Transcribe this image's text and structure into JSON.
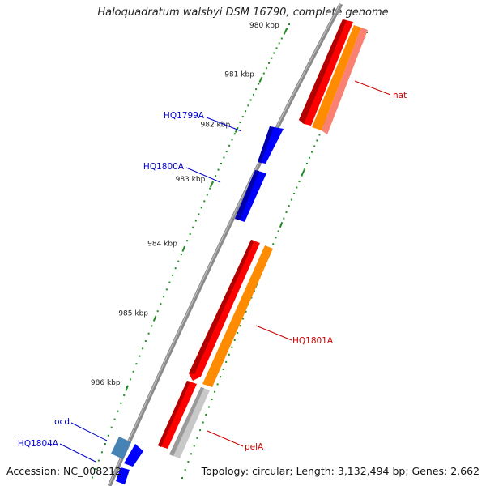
{
  "title": "Haloquadratum walsbyi DSM 16790, complete genome",
  "footer": {
    "accession": "Accession: NC_008212",
    "topology": "Topology: circular; Length: 3,132,494 bp; Genes: 2,662"
  },
  "ticks": [
    "980 kbp",
    "981 kbp",
    "982 kbp",
    "983 kbp",
    "984 kbp",
    "985 kbp",
    "986 kbp"
  ],
  "gene_labels": [
    {
      "name": "HQ1799A",
      "color": "#0000cc"
    },
    {
      "name": "HQ1800A",
      "color": "#0000cc"
    },
    {
      "name": "hat",
      "color": "#cc0000"
    },
    {
      "name": "HQ1801A",
      "color": "#cc0000"
    },
    {
      "name": "pelA",
      "color": "#cc0000"
    },
    {
      "name": "ocd",
      "color": "#0000cc"
    },
    {
      "name": "HQ1804A",
      "color": "#0000cc"
    }
  ],
  "colors": {
    "backbone": "#808080",
    "tick_dots": "#228b22",
    "forward_blue": "#0000ff",
    "steel_blue": "#4682b4",
    "red": "#ff0000",
    "orange": "#ff8c00",
    "salmon": "#fa8072",
    "gray": "#c8c8c8"
  }
}
